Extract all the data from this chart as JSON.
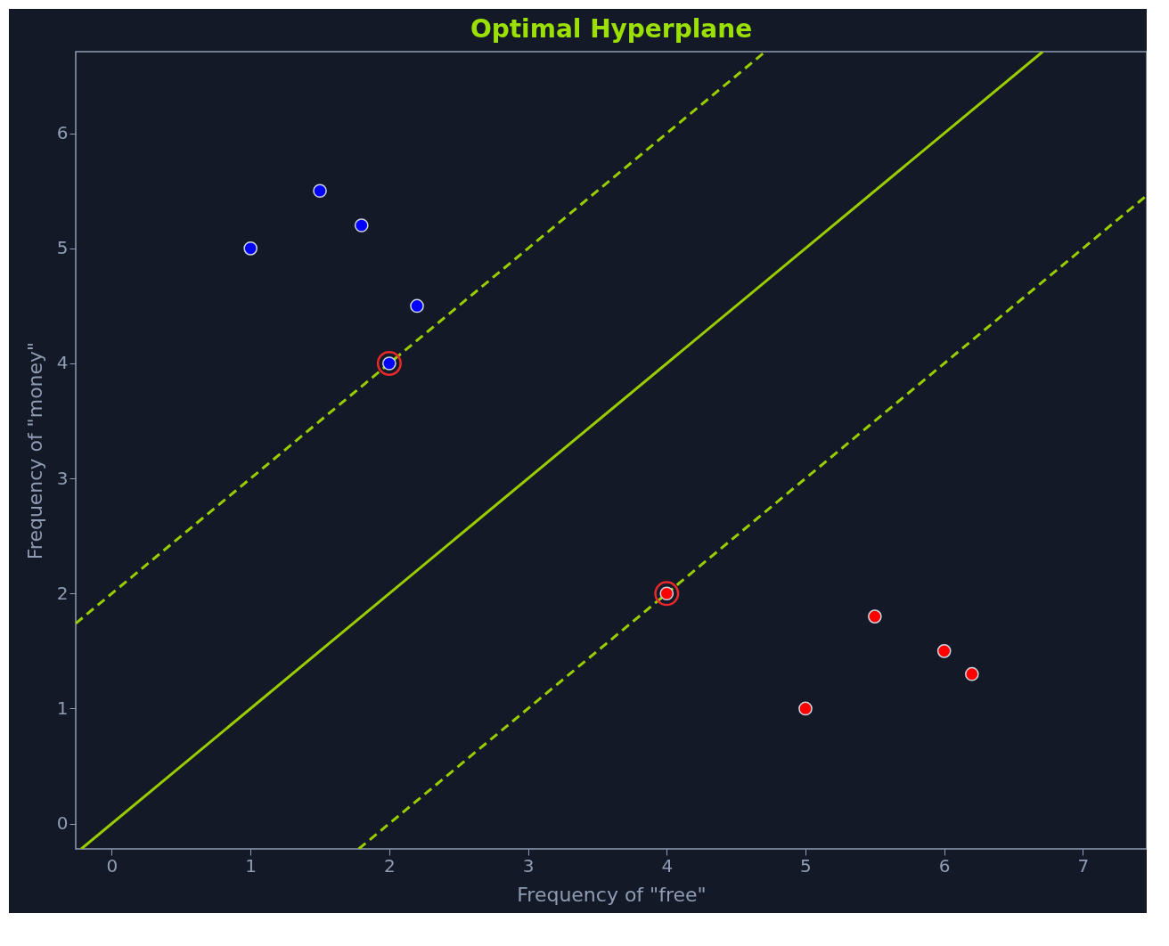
{
  "chart_data": {
    "type": "scatter",
    "title": "Optimal Hyperplane",
    "xlabel": "Frequency of \"free\"",
    "ylabel": "Frequency of \"money\"",
    "xlim": [
      -0.26,
      7.46
    ],
    "ylim": [
      -0.22,
      6.71
    ],
    "xticks": [
      0,
      1,
      2,
      3,
      4,
      5,
      6,
      7
    ],
    "yticks": [
      0,
      1,
      2,
      3,
      4,
      5,
      6
    ],
    "grid": false,
    "legend": false,
    "series": [
      {
        "type": "line",
        "line_style": "solid",
        "color": "#9acd00",
        "x": [
          -0.22,
          6.71
        ],
        "values": [
          -0.22,
          6.71
        ]
      },
      {
        "type": "line",
        "line_style": "dashed",
        "color": "#9acd00",
        "x": [
          -0.26,
          4.71
        ],
        "values": [
          1.74,
          6.71
        ]
      },
      {
        "type": "line",
        "line_style": "dashed",
        "color": "#9acd00",
        "x": [
          1.78,
          7.46
        ],
        "values": [
          -0.22,
          5.46
        ]
      },
      {
        "color": "#0000ff",
        "x": [
          1,
          1.5,
          1.8,
          2.2,
          2
        ],
        "values": [
          5,
          5.5,
          5.2,
          4.5,
          4
        ]
      },
      {
        "color": "#ff0000",
        "x": [
          4,
          5,
          5.5,
          6,
          6.2
        ],
        "values": [
          2,
          1,
          1.8,
          1.5,
          1.3
        ]
      },
      {
        "marker": "circle",
        "color": "#e8292c",
        "x": [
          2,
          4
        ],
        "values": [
          4,
          2
        ]
      }
    ]
  }
}
